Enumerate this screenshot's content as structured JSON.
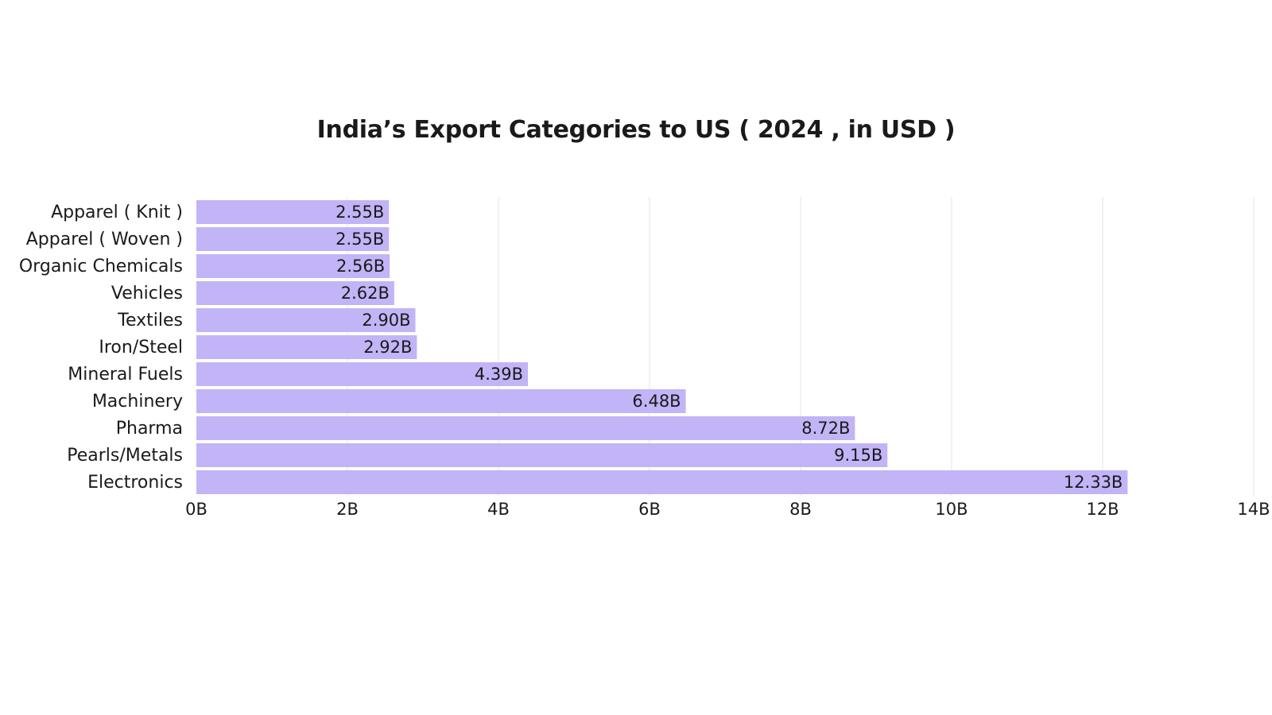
{
  "chart_data": {
    "type": "bar",
    "orientation": "horizontal",
    "title": "India’s Export Categories to US ( 2024 , in USD )",
    "categories": [
      "Apparel ( Knit )",
      "Apparel ( Woven )",
      "Organic Chemicals",
      "Vehicles",
      "Textiles",
      "Iron/Steel",
      "Mineral Fuels",
      "Machinery",
      "Pharma",
      "Pearls/Metals",
      "Electronics"
    ],
    "values": [
      2.55,
      2.55,
      2.56,
      2.62,
      2.9,
      2.92,
      4.39,
      6.48,
      8.72,
      9.15,
      12.33
    ],
    "data_labels": [
      "2.55B",
      "2.55B",
      "2.56B",
      "2.62B",
      "2.90B",
      "2.92B",
      "4.39B",
      "6.48B",
      "8.72B",
      "9.15B",
      "12.33B"
    ],
    "xlim": [
      0,
      14
    ],
    "xticks": [
      0,
      2,
      4,
      6,
      8,
      10,
      12,
      14
    ],
    "xtick_labels": [
      "0B",
      "2B",
      "4B",
      "6B",
      "8B",
      "10B",
      "12B",
      "14B"
    ],
    "xlabel": "",
    "ylabel": "",
    "grid": "vertical",
    "legend": "none",
    "bar_color": "#c2b4f6"
  }
}
